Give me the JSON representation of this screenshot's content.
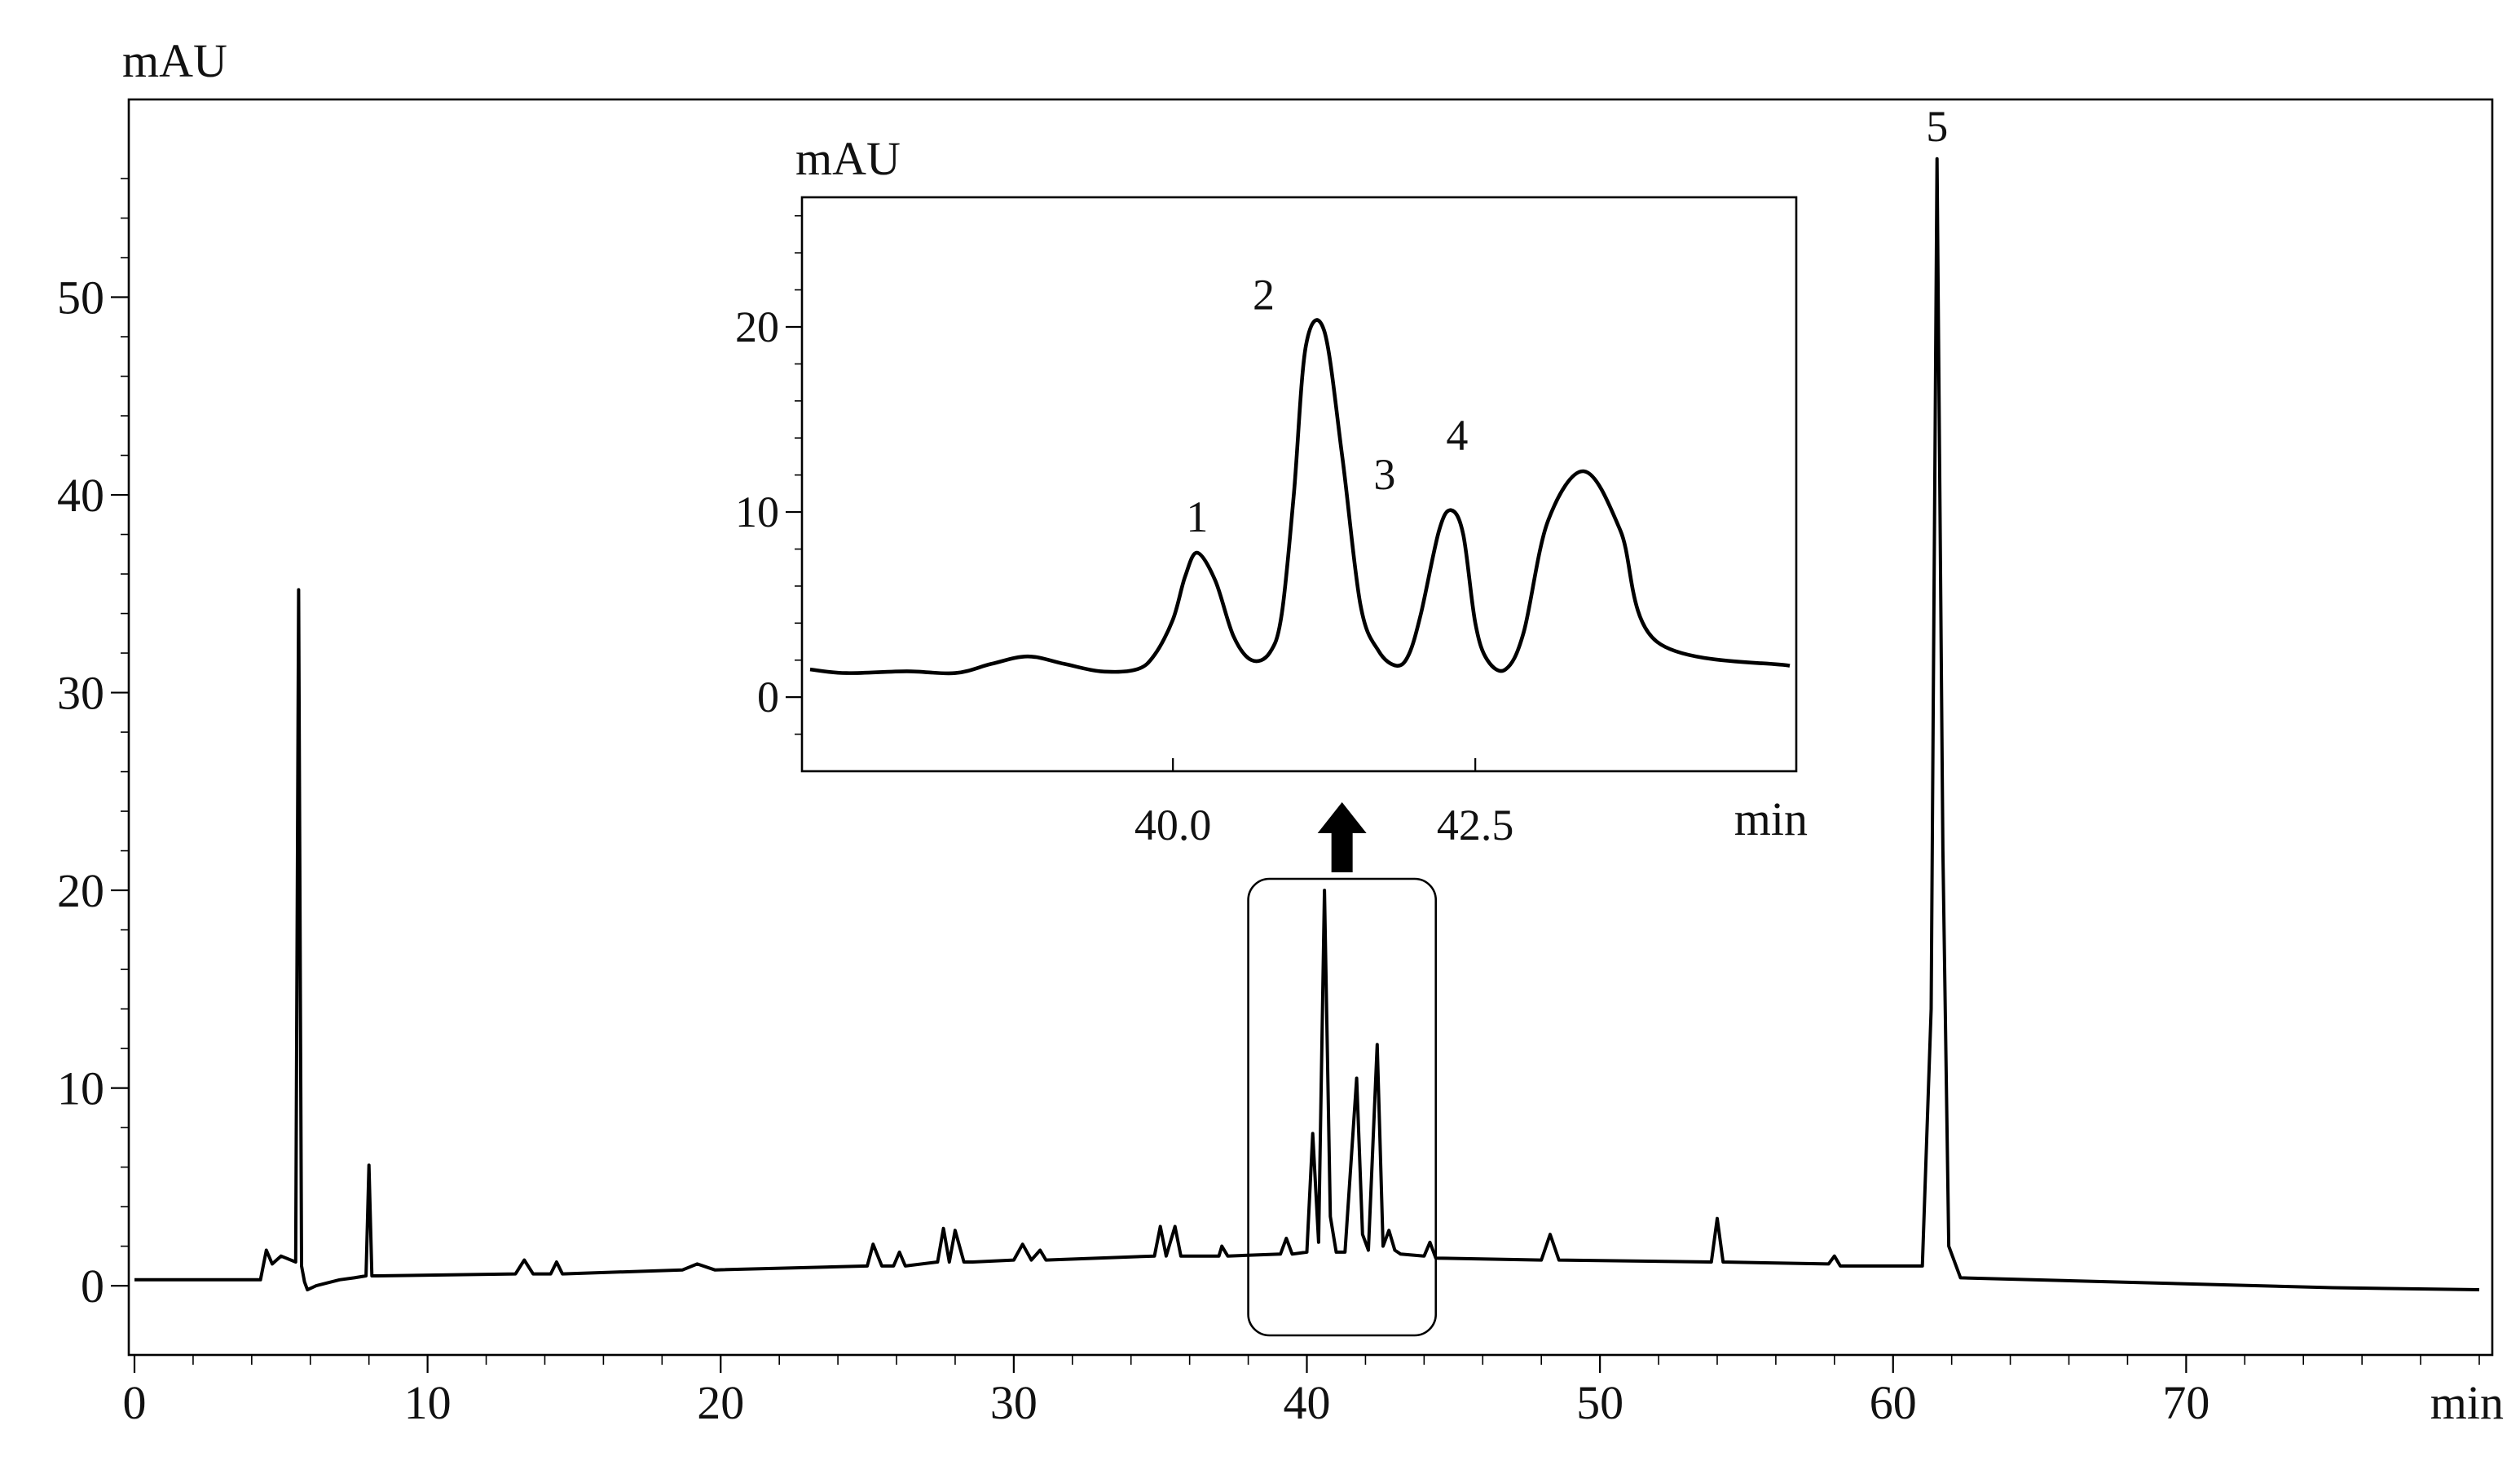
{
  "chart_data": [
    {
      "type": "line",
      "title": "",
      "xlabel": "min",
      "ylabel": "mAU",
      "xlim": [
        0,
        80
      ],
      "ylim": [
        -3.5,
        60
      ],
      "xticks": [
        0,
        10,
        20,
        30,
        40,
        50,
        60,
        70
      ],
      "yticks": [
        0,
        10,
        20,
        30,
        40,
        50
      ],
      "grid": false,
      "series": [
        {
          "x": [
            0.0,
            4.3,
            4.5,
            4.7,
            5.0,
            5.5,
            5.6,
            5.7,
            5.8,
            5.9,
            6.2,
            7.0,
            7.5,
            7.9,
            8.0,
            8.1,
            8.3,
            13.0,
            13.3,
            13.6,
            14.2,
            14.4,
            14.6,
            18.7,
            19.2,
            19.8,
            25.0,
            25.2,
            25.5,
            25.9,
            26.1,
            26.3,
            27.4,
            27.6,
            27.8,
            28.0,
            28.3,
            28.6,
            30.0,
            30.3,
            30.6,
            30.9,
            31.1,
            34.8,
            35.0,
            35.2,
            35.5,
            35.7,
            35.9,
            37.0,
            37.1,
            37.3,
            39.1,
            39.3,
            39.5,
            40.0,
            40.2,
            40.4,
            40.6,
            40.8,
            41.0,
            41.3,
            41.7,
            41.9,
            42.1,
            42.4,
            42.6,
            42.8,
            43.0,
            43.2,
            44.0,
            44.2,
            44.4,
            48.0,
            48.3,
            48.6,
            53.8,
            54.0,
            54.2,
            57.8,
            58.0,
            58.2,
            61.0,
            61.3,
            61.5,
            61.7,
            61.9,
            62.3,
            75.0,
            80.0
          ],
          "y": [
            0.3,
            0.3,
            1.8,
            1.1,
            1.5,
            1.2,
            35.2,
            1.0,
            0.2,
            -0.2,
            0.0,
            0.3,
            0.4,
            0.5,
            6.1,
            0.5,
            0.5,
            0.6,
            1.3,
            0.6,
            0.6,
            1.2,
            0.6,
            0.8,
            1.1,
            0.8,
            1.0,
            2.1,
            1.0,
            1.0,
            1.7,
            1.0,
            1.2,
            2.9,
            1.2,
            2.8,
            1.2,
            1.2,
            1.3,
            2.1,
            1.3,
            1.8,
            1.3,
            1.5,
            3.0,
            1.5,
            3.0,
            1.5,
            1.5,
            1.5,
            2.0,
            1.5,
            1.6,
            2.4,
            1.6,
            1.7,
            7.7,
            2.2,
            20.0,
            3.5,
            1.7,
            1.7,
            10.5,
            2.6,
            1.8,
            12.2,
            2.0,
            2.8,
            1.8,
            1.6,
            1.5,
            2.2,
            1.4,
            1.3,
            2.6,
            1.3,
            1.2,
            3.4,
            1.2,
            1.1,
            1.5,
            1.0,
            1.0,
            14.0,
            57.0,
            22.0,
            2.0,
            0.4,
            -0.1,
            -0.2
          ]
        }
      ],
      "annotations": [
        {
          "text": "5",
          "x": 61.5,
          "y": 57.0
        }
      ],
      "highlight_window": [
        38.0,
        44.4
      ]
    },
    {
      "type": "line",
      "title": "",
      "xlabel": "min",
      "ylabel": "mAU",
      "xlim": [
        37.0,
        45.1
      ],
      "ylim": [
        -4,
        27
      ],
      "xticks": [
        40.0,
        42.5
      ],
      "xtick_labels": [
        "40.0",
        "42.5"
      ],
      "yticks": [
        0,
        10,
        20
      ],
      "grid": false,
      "series": [
        {
          "x": [
            37.0,
            37.3,
            37.8,
            38.2,
            38.5,
            38.8,
            39.1,
            39.4,
            39.7,
            39.85,
            40.0,
            40.1,
            40.2,
            40.35,
            40.5,
            40.65,
            40.8,
            40.9,
            41.0,
            41.1,
            41.25,
            41.4,
            41.55,
            41.7,
            41.85,
            41.95,
            42.05,
            42.2,
            42.3,
            42.4,
            42.5,
            42.6,
            42.75,
            42.9,
            43.1,
            43.4,
            43.7,
            44.0,
            45.1
          ],
          "y": [
            1.5,
            1.3,
            1.4,
            1.3,
            1.8,
            2.2,
            1.8,
            1.4,
            1.5,
            2.3,
            4.2,
            6.5,
            7.8,
            6.3,
            3.3,
            2.0,
            2.4,
            4.5,
            11.0,
            19.0,
            19.8,
            13.0,
            5.0,
            2.5,
            1.7,
            2.3,
            4.5,
            9.0,
            10.1,
            8.8,
            4.0,
            2.0,
            1.5,
            3.5,
            9.5,
            12.2,
            9.0,
            3.0,
            1.7
          ]
        }
      ],
      "annotations": [
        {
          "text": "1",
          "x": 40.2,
          "y": 7.8
        },
        {
          "text": "2",
          "x": 40.75,
          "y": 19.8
        },
        {
          "text": "3",
          "x": 41.75,
          "y": 10.1
        },
        {
          "text": "4",
          "x": 42.35,
          "y": 12.2
        }
      ]
    }
  ]
}
